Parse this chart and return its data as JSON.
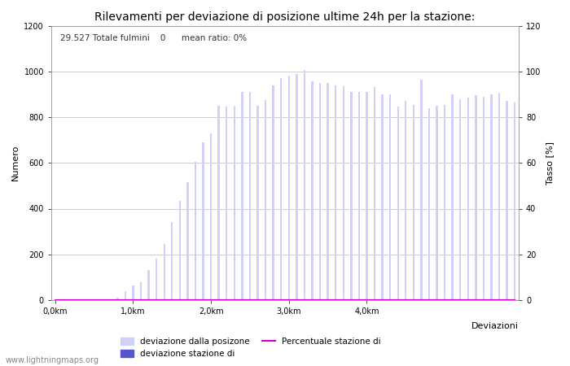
{
  "title": "Rilevamenti per deviazione di posizione ultime 24h per la stazione:",
  "subtitle": "29.527 Totale fulmini    0      mean ratio: 0%",
  "xlabel": "Deviazioni",
  "ylabel_left": "Numero",
  "ylabel_right": "Tasso [%]",
  "ylim_left": [
    0,
    1200
  ],
  "ylim_right": [
    0,
    120
  ],
  "yticks_left": [
    0,
    200,
    400,
    600,
    800,
    1000,
    1200
  ],
  "yticks_right": [
    0,
    20,
    40,
    60,
    80,
    100,
    120
  ],
  "xtick_labels": [
    "0,0km",
    "1,0km",
    "2,0km",
    "3,0km",
    "4,0km"
  ],
  "xtick_positions": [
    0,
    10,
    20,
    30,
    40
  ],
  "watermark": "www.lightningmaps.org",
  "bar_color_light": "#d0d0f8",
  "bar_color_dark": "#5555cc",
  "line_color": "#cc00cc",
  "bar_values": [
    5,
    5,
    5,
    5,
    5,
    5,
    5,
    5,
    10,
    40,
    65,
    80,
    130,
    180,
    245,
    340,
    435,
    515,
    605,
    690,
    730,
    850,
    845,
    850,
    910,
    910,
    850,
    875,
    940,
    970,
    980,
    990,
    1005,
    955,
    950,
    950,
    940,
    935,
    910,
    910,
    910,
    930,
    900,
    900,
    845,
    870,
    855,
    965,
    840,
    850,
    855,
    900,
    880,
    885,
    895,
    890,
    900,
    905,
    870,
    865
  ],
  "station_bar_values": [
    0,
    0,
    0,
    0,
    0,
    0,
    0,
    0,
    0,
    0,
    0,
    0,
    0,
    0,
    0,
    0,
    0,
    0,
    0,
    0,
    0,
    0,
    0,
    0,
    0,
    0,
    0,
    0,
    0,
    0,
    0,
    0,
    0,
    0,
    0,
    0,
    0,
    0,
    0,
    0,
    0,
    0,
    0,
    0,
    0,
    0,
    0,
    0,
    0,
    0,
    0,
    0,
    0,
    0,
    0,
    0,
    0,
    0,
    0,
    0
  ],
  "percentage_values": [
    0,
    0,
    0,
    0,
    0,
    0,
    0,
    0,
    0,
    0,
    0,
    0,
    0,
    0,
    0,
    0,
    0,
    0,
    0,
    0,
    0,
    0,
    0,
    0,
    0,
    0,
    0,
    0,
    0,
    0,
    0,
    0,
    0,
    0,
    0,
    0,
    0,
    0,
    0,
    0,
    0,
    0,
    0,
    0,
    0,
    0,
    0,
    0,
    0,
    0,
    0,
    0,
    0,
    0,
    0,
    0,
    0,
    0,
    0,
    0
  ],
  "legend_labels": [
    "deviazione dalla posizone",
    "deviazione stazione di",
    "Percentuale stazione di"
  ],
  "background_color": "#ffffff",
  "grid_color": "#bbbbbb",
  "bar_width": 0.25,
  "n_bars": 60
}
